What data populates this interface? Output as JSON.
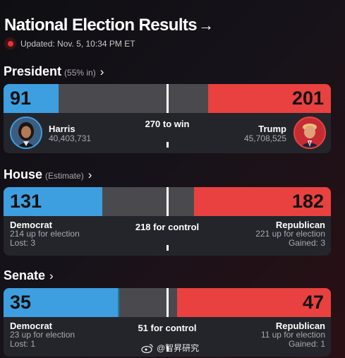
{
  "header": {
    "title": "National Election Results",
    "title_arrow": "→",
    "updated": "Updated: Nov. 5, 10:34 PM ET"
  },
  "president": {
    "label": "President",
    "sub": "(55% in)",
    "chevron": "›",
    "dem_ev": "91",
    "rep_ev": "201",
    "goal": "270 to win",
    "dem_name": "Harris",
    "dem_votes": "40,403,731",
    "rep_name": "Trump",
    "rep_votes": "45,708,525",
    "dem_fraction": 0.169,
    "rep_fraction": 0.374
  },
  "house": {
    "label": "House",
    "sub": "(Estimate)",
    "chevron": "›",
    "dem_seats": "131",
    "rep_seats": "182",
    "goal": "218 for control",
    "dem_party": "Democrat",
    "dem_up": "214 up for election",
    "dem_change": "Lost: 3",
    "rep_party": "Republican",
    "rep_up": "221 up for election",
    "rep_change": "Gained: 3",
    "dem_fraction": 0.301,
    "rep_fraction": 0.418
  },
  "senate": {
    "label": "Senate",
    "chevron": "›",
    "dem_seats": "35",
    "rep_seats": "47",
    "goal": "51 for control",
    "dem_party": "Democrat",
    "dem_up": "23 up for election",
    "dem_change": "Lost: 1",
    "rep_party": "Republican",
    "rep_up": "11 up for election",
    "rep_change": "Gained: 1",
    "dem_fraction": 0.35,
    "independent_fraction": 0.004,
    "rep_fraction": 0.47
  },
  "watermark": "@智昇研究",
  "colors": {
    "democrat": "#3d9fe0",
    "republican": "#e8413f",
    "independent": "#1c7ea0",
    "undecided": "#4a4a4e",
    "live": "#e8333b"
  }
}
